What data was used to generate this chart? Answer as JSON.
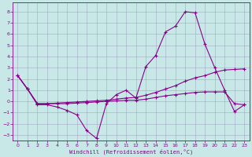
{
  "xlabel": "Windchill (Refroidissement éolien,°C)",
  "background_color": "#c8e8e8",
  "line_color": "#880088",
  "xlim": [
    -0.5,
    23.5
  ],
  "ylim": [
    -3.5,
    8.8
  ],
  "yticks": [
    -3,
    -2,
    -1,
    0,
    1,
    2,
    3,
    4,
    5,
    6,
    7,
    8
  ],
  "xticks": [
    0,
    1,
    2,
    3,
    4,
    5,
    6,
    7,
    8,
    9,
    10,
    11,
    12,
    13,
    14,
    15,
    16,
    17,
    18,
    19,
    20,
    21,
    22,
    23
  ],
  "series1_x": [
    0,
    1,
    2,
    3,
    4,
    5,
    6,
    7,
    8,
    9,
    10,
    11,
    12,
    13,
    14,
    15,
    16,
    17,
    18,
    19,
    20,
    21,
    22,
    23
  ],
  "series1_y": [
    2.3,
    1.1,
    -0.3,
    -0.3,
    -0.5,
    -0.8,
    -1.2,
    -2.6,
    -3.3,
    -0.2,
    0.6,
    1.0,
    0.3,
    3.1,
    4.1,
    6.2,
    6.7,
    8.0,
    7.9,
    5.1,
    3.0,
    1.0,
    -0.9,
    -0.3
  ],
  "series2_x": [
    0,
    1,
    2,
    3,
    4,
    5,
    6,
    7,
    8,
    9,
    10,
    11,
    12,
    13,
    14,
    15,
    16,
    17,
    18,
    19,
    20,
    21,
    22,
    23
  ],
  "series2_y": [
    2.3,
    1.1,
    -0.2,
    -0.2,
    -0.15,
    -0.1,
    -0.05,
    -0.0,
    0.05,
    0.1,
    0.2,
    0.3,
    0.35,
    0.55,
    0.8,
    1.1,
    1.4,
    1.8,
    2.1,
    2.3,
    2.6,
    2.8,
    2.85,
    2.9
  ],
  "series3_x": [
    0,
    1,
    2,
    3,
    4,
    5,
    6,
    7,
    8,
    9,
    10,
    11,
    12,
    13,
    14,
    15,
    16,
    17,
    18,
    19,
    20,
    21,
    22,
    23
  ],
  "series3_y": [
    2.3,
    1.1,
    -0.2,
    -0.2,
    -0.2,
    -0.2,
    -0.15,
    -0.1,
    -0.05,
    0.0,
    0.05,
    0.1,
    0.1,
    0.2,
    0.35,
    0.5,
    0.6,
    0.7,
    0.8,
    0.85,
    0.85,
    0.85,
    -0.2,
    -0.3
  ]
}
